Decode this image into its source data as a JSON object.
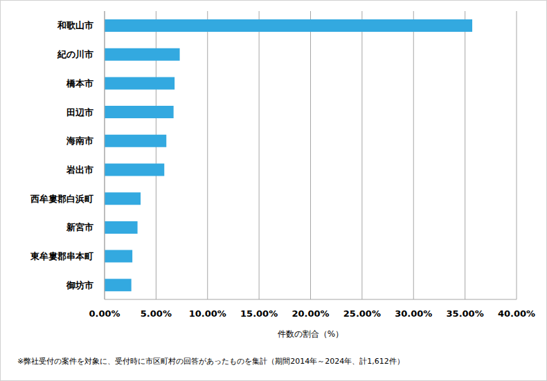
{
  "chart_data": {
    "type": "bar",
    "orientation": "horizontal",
    "categories": [
      "和歌山市",
      "紀の川市",
      "橋本市",
      "田辺市",
      "海南市",
      "岩出市",
      "西牟婁郡白浜町",
      "新宮市",
      "東牟婁郡串本町",
      "御坊市"
    ],
    "values": [
      35.7,
      7.3,
      6.8,
      6.7,
      6.0,
      5.8,
      3.5,
      3.2,
      2.7,
      2.6
    ],
    "color": "#33a9e0",
    "xlabel": "件数の割合（%）",
    "xlim": [
      0,
      40
    ],
    "xticks": [
      {
        "value": 0,
        "label": "0.00%"
      },
      {
        "value": 5,
        "label": "5.00%"
      },
      {
        "value": 10,
        "label": "10.00%"
      },
      {
        "value": 15,
        "label": "15.00%"
      },
      {
        "value": 20,
        "label": "20.00%"
      },
      {
        "value": 25,
        "label": "25.00%"
      },
      {
        "value": 30,
        "label": "30.00%"
      },
      {
        "value": 35,
        "label": "35.00%"
      },
      {
        "value": 40,
        "label": "40.00%"
      }
    ],
    "grid": true,
    "annotations": [
      "※弊社受付の案件を対象に、受付時に市区町村の回答があったものを集計（期間2014年～2024年、計1,612件）"
    ]
  }
}
